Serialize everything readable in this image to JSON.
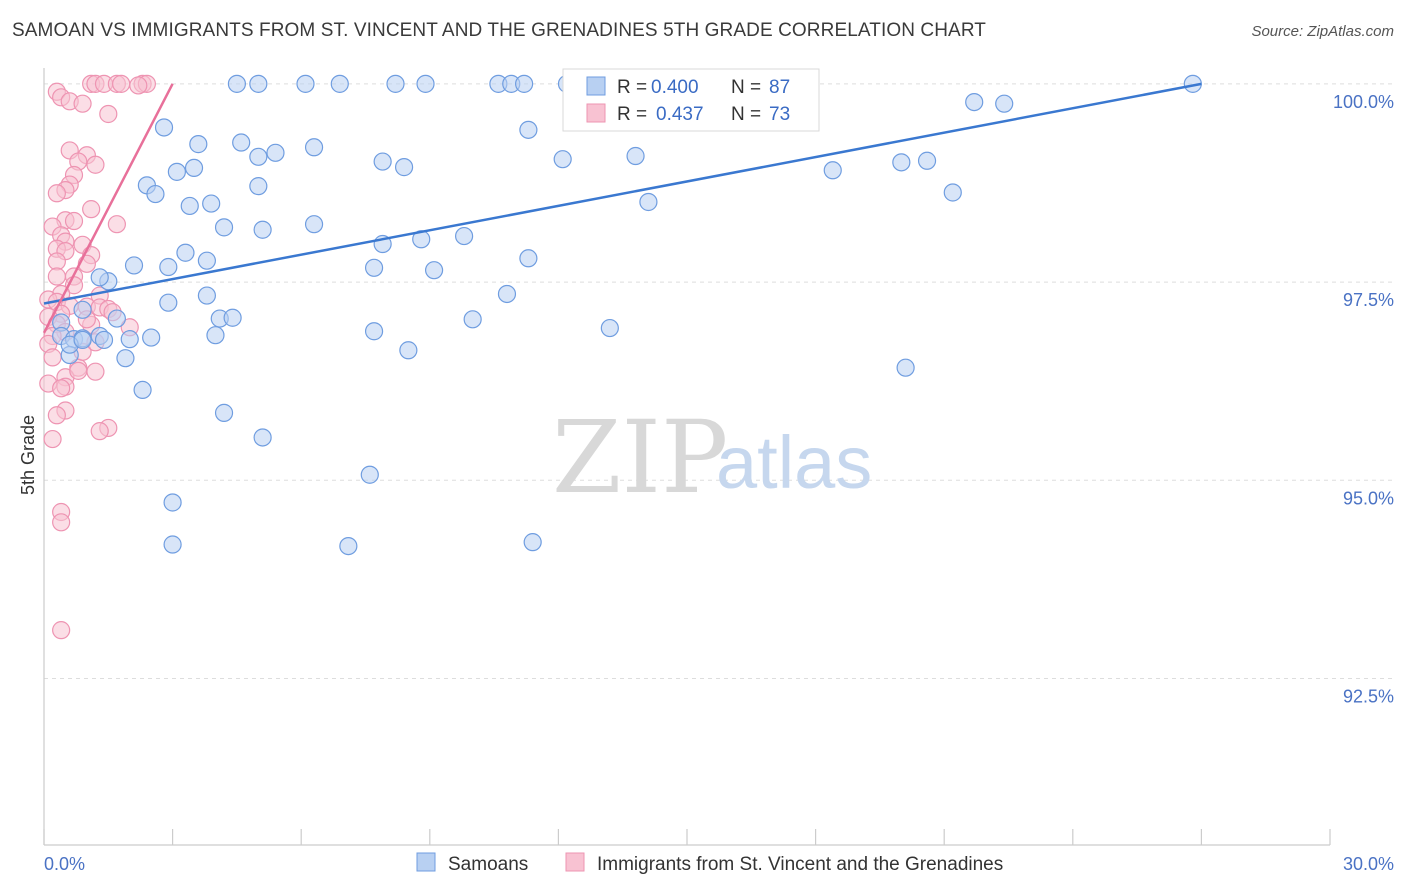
{
  "title": "SAMOAN VS IMMIGRANTS FROM ST. VINCENT AND THE GRENADINES 5TH GRADE CORRELATION CHART",
  "source": "Source: ZipAtlas.com",
  "watermark": {
    "zip": "ZIP",
    "atlas": "atlas"
  },
  "legend": {
    "rows": [
      {
        "r_label": "R =",
        "r_value": "0.400",
        "n_label": "N =",
        "n_value": "87"
      },
      {
        "r_label": "R =",
        "r_value": "0.437",
        "n_label": "N =",
        "n_value": "73"
      }
    ]
  },
  "bottom_legend": [
    "Samoans",
    "Immigrants from St. Vincent and the Grenadines"
  ],
  "colors": {
    "blue_fill": "#b8d0f2",
    "blue_stroke": "#6f9de0",
    "blue_line": "#3a78d0",
    "pink_fill": "#f8c2d2",
    "pink_stroke": "#ee94b2",
    "pink_line": "#e8709a",
    "axis_text": "#4a72c4",
    "grid": "#dddddd"
  },
  "chart_data": {
    "type": "scatter",
    "title": "SAMOAN VS IMMIGRANTS FROM ST. VINCENT AND THE GRENADINES 5TH GRADE CORRELATION CHART",
    "xlabel": "",
    "ylabel": "5th Grade",
    "xlim": [
      0.0,
      30.0
    ],
    "ylim": [
      90.4,
      100.2
    ],
    "x_tick_labels": [
      "0.0%",
      "30.0%"
    ],
    "y_ticks": [
      92.5,
      95.0,
      97.5,
      100.0
    ],
    "y_tick_labels": [
      "92.5%",
      "95.0%",
      "97.5%",
      "100.0%"
    ],
    "grid": true,
    "legend_position": "top-center",
    "series": [
      {
        "name": "Samoans",
        "R": 0.4,
        "N": 87,
        "trend": {
          "x0": 0.0,
          "y0": 97.23,
          "x1": 27.0,
          "y1": 100.0
        },
        "points": [
          [
            4.5,
            100.0
          ],
          [
            5.0,
            100.0
          ],
          [
            6.1,
            100.0
          ],
          [
            6.9,
            100.0
          ],
          [
            8.2,
            100.0
          ],
          [
            8.9,
            100.0
          ],
          [
            10.6,
            100.0
          ],
          [
            10.9,
            100.0
          ],
          [
            11.2,
            100.0
          ],
          [
            12.2,
            100.0
          ],
          [
            14.9,
            100.0
          ],
          [
            26.8,
            100.0
          ],
          [
            21.7,
            99.77
          ],
          [
            22.4,
            99.75
          ],
          [
            2.8,
            99.45
          ],
          [
            11.3,
            99.42
          ],
          [
            3.6,
            99.24
          ],
          [
            4.6,
            99.26
          ],
          [
            6.3,
            99.2
          ],
          [
            5.4,
            99.13
          ],
          [
            5.0,
            99.08
          ],
          [
            12.1,
            99.05
          ],
          [
            7.9,
            99.02
          ],
          [
            3.1,
            98.89
          ],
          [
            3.5,
            98.94
          ],
          [
            20.0,
            99.01
          ],
          [
            18.4,
            98.91
          ],
          [
            8.4,
            98.95
          ],
          [
            13.8,
            99.09
          ],
          [
            14.1,
            98.51
          ],
          [
            20.6,
            99.03
          ],
          [
            21.2,
            98.63
          ],
          [
            2.4,
            98.72
          ],
          [
            2.6,
            98.61
          ],
          [
            5.0,
            98.71
          ],
          [
            3.4,
            98.46
          ],
          [
            3.9,
            98.49
          ],
          [
            6.3,
            98.23
          ],
          [
            4.2,
            98.19
          ],
          [
            5.1,
            98.16
          ],
          [
            8.8,
            98.04
          ],
          [
            7.9,
            97.98
          ],
          [
            9.8,
            98.08
          ],
          [
            11.3,
            97.8
          ],
          [
            3.3,
            97.87
          ],
          [
            3.8,
            97.77
          ],
          [
            2.1,
            97.71
          ],
          [
            2.9,
            97.69
          ],
          [
            9.1,
            97.65
          ],
          [
            1.5,
            97.51
          ],
          [
            7.7,
            97.68
          ],
          [
            2.9,
            97.24
          ],
          [
            3.8,
            97.33
          ],
          [
            10.8,
            97.35
          ],
          [
            0.9,
            97.15
          ],
          [
            4.1,
            97.04
          ],
          [
            4.4,
            97.05
          ],
          [
            10.0,
            97.03
          ],
          [
            4.0,
            96.83
          ],
          [
            13.2,
            96.92
          ],
          [
            7.7,
            96.88
          ],
          [
            0.4,
            96.99
          ],
          [
            1.3,
            96.82
          ],
          [
            0.4,
            96.82
          ],
          [
            0.7,
            96.78
          ],
          [
            0.9,
            96.79
          ],
          [
            2.0,
            96.78
          ],
          [
            2.5,
            96.8
          ],
          [
            1.9,
            96.54
          ],
          [
            0.6,
            96.58
          ],
          [
            8.5,
            96.64
          ],
          [
            20.1,
            96.42
          ],
          [
            2.3,
            96.14
          ],
          [
            4.2,
            95.85
          ],
          [
            5.1,
            95.54
          ],
          [
            7.6,
            95.07
          ],
          [
            3.0,
            94.72
          ],
          [
            3.0,
            94.19
          ],
          [
            7.1,
            94.17
          ],
          [
            11.4,
            94.22
          ],
          [
            1.7,
            97.04
          ],
          [
            13.7,
            100.0
          ],
          [
            0.6,
            96.71
          ],
          [
            1.4,
            96.77
          ],
          [
            0.9,
            96.77
          ],
          [
            1.3,
            97.56
          ]
        ]
      },
      {
        "name": "Immigrants from St. Vincent and the Grenadines",
        "R": 0.437,
        "N": 73,
        "trend": {
          "x0": 0.0,
          "y0": 96.86,
          "x1": 3.0,
          "y1": 100.0
        },
        "points": [
          [
            1.1,
            100.0
          ],
          [
            1.2,
            100.0
          ],
          [
            1.4,
            100.0
          ],
          [
            1.7,
            100.0
          ],
          [
            1.8,
            100.0
          ],
          [
            2.3,
            100.0
          ],
          [
            2.4,
            100.0
          ],
          [
            0.3,
            99.9
          ],
          [
            0.4,
            99.83
          ],
          [
            0.6,
            99.78
          ],
          [
            0.9,
            99.75
          ],
          [
            1.5,
            99.62
          ],
          [
            0.6,
            99.16
          ],
          [
            1.0,
            99.1
          ],
          [
            0.8,
            99.02
          ],
          [
            1.2,
            98.98
          ],
          [
            0.7,
            98.85
          ],
          [
            0.6,
            98.73
          ],
          [
            0.5,
            98.66
          ],
          [
            0.3,
            98.62
          ],
          [
            1.1,
            98.42
          ],
          [
            0.5,
            98.28
          ],
          [
            0.7,
            98.27
          ],
          [
            1.7,
            98.23
          ],
          [
            0.2,
            98.2
          ],
          [
            0.4,
            98.09
          ],
          [
            0.5,
            98.01
          ],
          [
            0.9,
            97.97
          ],
          [
            0.3,
            97.92
          ],
          [
            0.5,
            97.89
          ],
          [
            1.1,
            97.84
          ],
          [
            0.3,
            97.76
          ],
          [
            1.0,
            97.73
          ],
          [
            0.3,
            97.57
          ],
          [
            0.7,
            97.57
          ],
          [
            0.7,
            97.46
          ],
          [
            0.4,
            97.35
          ],
          [
            1.3,
            97.33
          ],
          [
            0.1,
            97.28
          ],
          [
            0.3,
            97.25
          ],
          [
            0.6,
            97.2
          ],
          [
            1.0,
            97.19
          ],
          [
            1.3,
            97.18
          ],
          [
            0.4,
            97.1
          ],
          [
            1.5,
            97.16
          ],
          [
            0.1,
            97.06
          ],
          [
            0.3,
            96.97
          ],
          [
            0.5,
            96.87
          ],
          [
            1.1,
            96.96
          ],
          [
            0.2,
            96.82
          ],
          [
            0.1,
            96.72
          ],
          [
            0.2,
            96.55
          ],
          [
            0.8,
            96.42
          ],
          [
            0.5,
            96.3
          ],
          [
            1.2,
            96.37
          ],
          [
            0.1,
            96.22
          ],
          [
            0.5,
            96.18
          ],
          [
            0.4,
            96.16
          ],
          [
            0.5,
            95.88
          ],
          [
            0.3,
            95.82
          ],
          [
            1.5,
            95.66
          ],
          [
            1.3,
            95.62
          ],
          [
            0.2,
            95.52
          ],
          [
            0.4,
            94.6
          ],
          [
            0.4,
            94.47
          ],
          [
            0.4,
            93.11
          ],
          [
            1.0,
            97.03
          ],
          [
            1.6,
            97.12
          ],
          [
            2.0,
            96.93
          ],
          [
            0.9,
            96.62
          ],
          [
            1.2,
            96.74
          ],
          [
            0.8,
            96.38
          ],
          [
            2.2,
            99.98
          ]
        ]
      }
    ]
  }
}
